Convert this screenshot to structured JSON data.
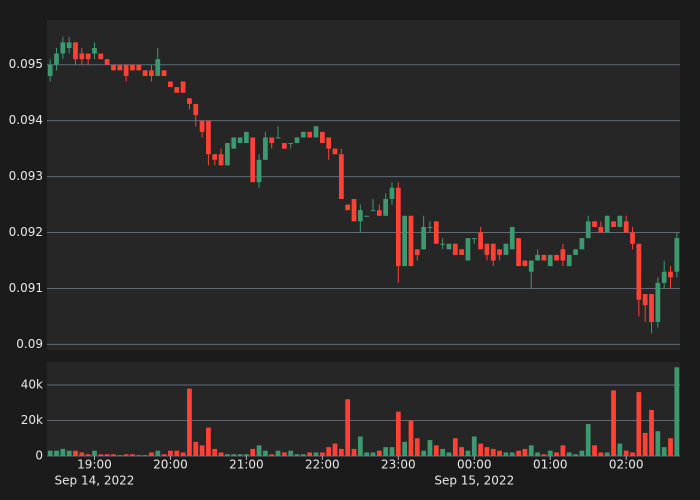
{
  "chart_data": {
    "type": "candlestick",
    "x": [
      "18:25",
      "18:30",
      "18:35",
      "18:40",
      "18:45",
      "18:50",
      "18:55",
      "19:00",
      "19:05",
      "19:10",
      "19:15",
      "19:20",
      "19:25",
      "19:30",
      "19:35",
      "19:40",
      "19:45",
      "19:50",
      "19:55",
      "20:00",
      "20:05",
      "20:10",
      "20:15",
      "20:20",
      "20:25",
      "20:30",
      "20:35",
      "20:40",
      "20:45",
      "20:50",
      "20:55",
      "21:00",
      "21:05",
      "21:10",
      "21:15",
      "21:20",
      "21:25",
      "21:30",
      "21:35",
      "21:40",
      "21:45",
      "21:50",
      "21:55",
      "22:00",
      "22:05",
      "22:10",
      "22:15",
      "22:20",
      "22:25",
      "22:30",
      "22:35",
      "22:40",
      "22:45",
      "22:50",
      "22:55",
      "23:00",
      "23:05",
      "23:10",
      "23:15",
      "23:20",
      "23:25",
      "23:30",
      "23:35",
      "23:40",
      "23:45",
      "23:50",
      "23:55",
      "00:00",
      "00:05",
      "00:10",
      "00:15",
      "00:20",
      "00:25",
      "00:30",
      "00:35",
      "00:40",
      "00:45",
      "00:50",
      "00:55",
      "01:00",
      "01:05",
      "01:10",
      "01:15",
      "01:20",
      "01:25",
      "01:30",
      "01:35",
      "01:40",
      "01:45",
      "01:50",
      "01:55",
      "02:00",
      "02:05",
      "02:10",
      "02:15",
      "02:20",
      "02:25",
      "02:30",
      "02:35",
      "02:40"
    ],
    "open": [
      0.0948,
      0.095,
      0.0952,
      0.0953,
      0.0954,
      0.0952,
      0.0952,
      0.0952,
      0.0952,
      0.0951,
      0.095,
      0.095,
      0.095,
      0.095,
      0.095,
      0.0949,
      0.0949,
      0.0948,
      0.0949,
      0.0947,
      0.0946,
      0.0947,
      0.0944,
      0.0943,
      0.094,
      0.094,
      0.0934,
      0.0934,
      0.0932,
      0.0935,
      0.0936,
      0.0936,
      0.0937,
      0.0929,
      0.0933,
      0.0937,
      0.0937,
      0.0936,
      0.0936,
      0.0936,
      0.0937,
      0.0938,
      0.0937,
      0.0938,
      0.0937,
      0.0935,
      0.0934,
      0.0925,
      0.0926,
      0.0922,
      0.0923,
      0.0924,
      0.0924,
      0.0923,
      0.0926,
      0.0928,
      0.0914,
      0.0923,
      0.0917,
      0.0917,
      0.0921,
      0.0922,
      0.0918,
      0.0917,
      0.0918,
      0.0917,
      0.0915,
      0.0919,
      0.092,
      0.0918,
      0.0918,
      0.0917,
      0.0916,
      0.0917,
      0.0919,
      0.0915,
      0.0913,
      0.0915,
      0.0916,
      0.0914,
      0.0916,
      0.0917,
      0.0914,
      0.0916,
      0.0917,
      0.0919,
      0.0922,
      0.0921,
      0.092,
      0.0922,
      0.0921,
      0.0922,
      0.092,
      0.0918,
      0.0909,
      0.0909,
      0.0904,
      0.0911,
      0.0913,
      0.0913
    ],
    "high": [
      0.0951,
      0.0953,
      0.0955,
      0.0955,
      0.0954,
      0.0953,
      0.0952,
      0.0954,
      0.0952,
      0.0951,
      0.095,
      0.095,
      0.095,
      0.095,
      0.095,
      0.0949,
      0.095,
      0.0953,
      0.0949,
      0.0947,
      0.0946,
      0.0947,
      0.0944,
      0.0943,
      0.094,
      0.094,
      0.0934,
      0.0935,
      0.0936,
      0.0937,
      0.0937,
      0.0938,
      0.0937,
      0.0934,
      0.0938,
      0.0937,
      0.0939,
      0.0936,
      0.0936,
      0.0937,
      0.0938,
      0.0938,
      0.0939,
      0.0938,
      0.0937,
      0.0935,
      0.0935,
      0.0925,
      0.0926,
      0.0925,
      0.0923,
      0.0926,
      0.0925,
      0.0927,
      0.0929,
      0.0929,
      0.0923,
      0.0923,
      0.0917,
      0.0923,
      0.0922,
      0.0922,
      0.0919,
      0.0918,
      0.0918,
      0.0917,
      0.0919,
      0.0919,
      0.0921,
      0.0918,
      0.0918,
      0.0917,
      0.0918,
      0.0921,
      0.0919,
      0.0915,
      0.0915,
      0.0917,
      0.0916,
      0.0916,
      0.0916,
      0.0918,
      0.0916,
      0.0917,
      0.0919,
      0.0923,
      0.0922,
      0.0922,
      0.0923,
      0.0922,
      0.0923,
      0.0923,
      0.0921,
      0.0918,
      0.0909,
      0.0909,
      0.0912,
      0.0915,
      0.0914,
      0.092
    ],
    "low": [
      0.0947,
      0.0949,
      0.0951,
      0.0952,
      0.095,
      0.095,
      0.095,
      0.0951,
      0.0951,
      0.095,
      0.0949,
      0.0949,
      0.0947,
      0.0949,
      0.0949,
      0.0948,
      0.0947,
      0.0948,
      0.0948,
      0.0946,
      0.0945,
      0.0945,
      0.0942,
      0.0939,
      0.0937,
      0.0932,
      0.0932,
      0.0932,
      0.0932,
      0.0935,
      0.0936,
      0.0936,
      0.0929,
      0.0928,
      0.0933,
      0.0935,
      0.0937,
      0.0935,
      0.0935,
      0.0936,
      0.0937,
      0.0937,
      0.0937,
      0.0936,
      0.0933,
      0.0934,
      0.0926,
      0.0924,
      0.0922,
      0.092,
      0.0923,
      0.0924,
      0.0923,
      0.0923,
      0.0925,
      0.0911,
      0.0914,
      0.0914,
      0.0915,
      0.0917,
      0.092,
      0.0918,
      0.0917,
      0.0917,
      0.0916,
      0.0916,
      0.0915,
      0.0918,
      0.0917,
      0.0915,
      0.0914,
      0.0915,
      0.0916,
      0.0917,
      0.0914,
      0.0914,
      0.091,
      0.0915,
      0.0915,
      0.0914,
      0.0915,
      0.0914,
      0.0914,
      0.0916,
      0.0917,
      0.0919,
      0.0921,
      0.092,
      0.092,
      0.0921,
      0.0921,
      0.092,
      0.0917,
      0.0905,
      0.0904,
      0.0902,
      0.0903,
      0.091,
      0.091,
      0.0912
    ],
    "close": [
      0.095,
      0.0952,
      0.0954,
      0.0954,
      0.0951,
      0.0951,
      0.0951,
      0.0953,
      0.0951,
      0.095,
      0.0949,
      0.0949,
      0.0948,
      0.0949,
      0.0949,
      0.0948,
      0.0948,
      0.0951,
      0.0948,
      0.0946,
      0.0945,
      0.0945,
      0.0943,
      0.0941,
      0.0938,
      0.0934,
      0.0933,
      0.0932,
      0.0936,
      0.0937,
      0.0937,
      0.0938,
      0.0929,
      0.0933,
      0.0937,
      0.0936,
      0.0937,
      0.0935,
      0.0936,
      0.0937,
      0.0938,
      0.0937,
      0.0939,
      0.0936,
      0.0935,
      0.0934,
      0.0926,
      0.0924,
      0.0922,
      0.0924,
      0.0923,
      0.0924,
      0.0923,
      0.0926,
      0.0928,
      0.0914,
      0.0923,
      0.0914,
      0.0916,
      0.0921,
      0.0921,
      0.0918,
      0.0918,
      0.0918,
      0.0916,
      0.0916,
      0.0919,
      0.0919,
      0.0917,
      0.0916,
      0.0915,
      0.0916,
      0.0918,
      0.0921,
      0.0914,
      0.0914,
      0.0915,
      0.0916,
      0.0915,
      0.0916,
      0.0915,
      0.0915,
      0.0916,
      0.0917,
      0.0919,
      0.0922,
      0.0921,
      0.092,
      0.0923,
      0.0921,
      0.0923,
      0.092,
      0.0918,
      0.0908,
      0.0907,
      0.0904,
      0.0911,
      0.0913,
      0.0912,
      0.0919
    ],
    "volume": [
      3000,
      3000,
      4000,
      3000,
      3000,
      2000,
      1000,
      3000,
      1000,
      1000,
      1000,
      500,
      1000,
      1000,
      500,
      500,
      2000,
      3000,
      1000,
      3000,
      3000,
      2000,
      38000,
      8000,
      6000,
      16000,
      4000,
      2000,
      1000,
      1000,
      1000,
      1000,
      4000,
      6000,
      3000,
      1000,
      3000,
      2000,
      3000,
      1000,
      1000,
      2000,
      2000,
      2000,
      5000,
      7000,
      4000,
      32000,
      4000,
      11000,
      2000,
      2000,
      3000,
      5000,
      5000,
      25000,
      8000,
      20000,
      10000,
      3000,
      9000,
      6000,
      4000,
      2000,
      10000,
      5000,
      3000,
      11000,
      7000,
      5000,
      4000,
      3000,
      2000,
      2000,
      3000,
      4000,
      6000,
      2000,
      1000,
      3000,
      2000,
      6000,
      2000,
      1000,
      3000,
      18000,
      6000,
      2000,
      2000,
      37000,
      7000,
      3000,
      2000,
      36000,
      13000,
      26000,
      14000,
      5000,
      10000,
      50000
    ],
    "up_color": "#3d9970",
    "down_color": "#ff4136",
    "ylim": [
      0.0899,
      0.0958
    ],
    "yticks": [
      0.09,
      0.091,
      0.092,
      0.093,
      0.094,
      0.095
    ],
    "volume_ylim": [
      0,
      53000
    ],
    "volume_yticks": [
      0,
      {
        "value": 20000,
        "label": "20k"
      },
      {
        "value": 40000,
        "label": "40k"
      }
    ],
    "xticks": [
      "19:00",
      "20:00",
      "21:00",
      "22:00",
      "23:00",
      "00:00",
      "01:00",
      "02:00"
    ],
    "date_labels": [
      {
        "tick": "19:00",
        "label": "Sep 14, 2022"
      },
      {
        "tick": "00:00",
        "label": "Sep 15, 2022"
      }
    ],
    "grid": true
  }
}
